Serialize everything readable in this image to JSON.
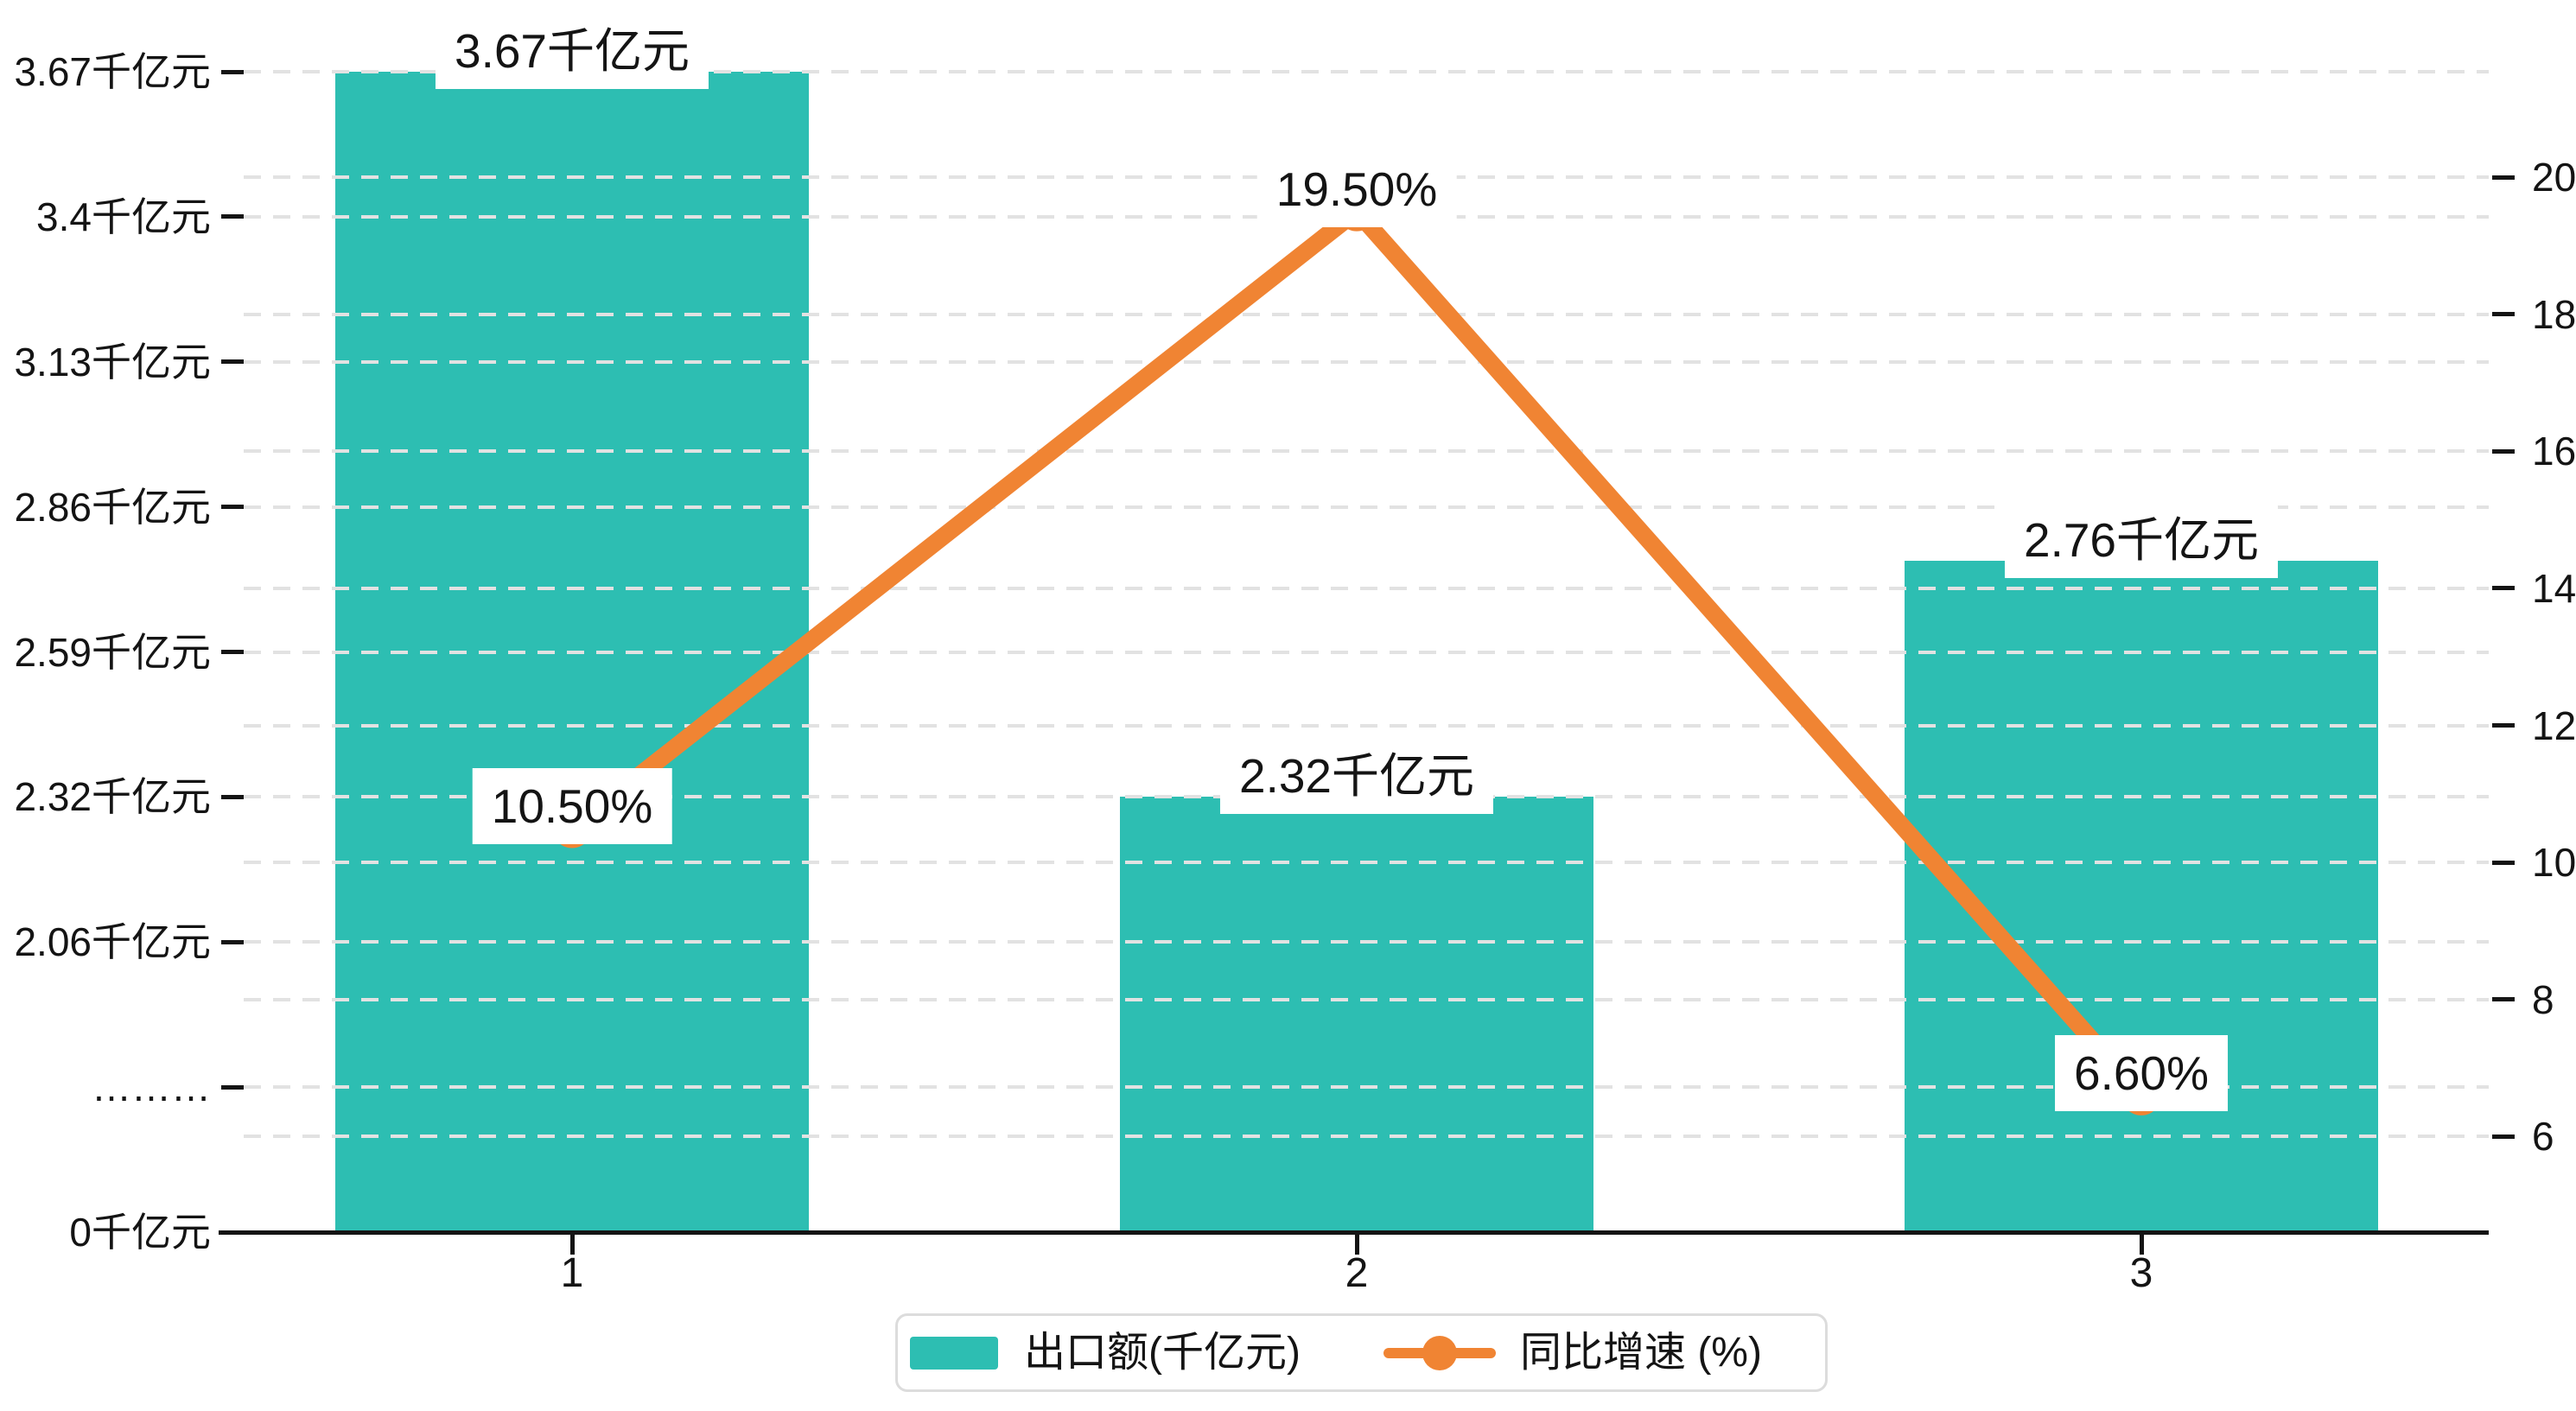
{
  "chart_data": {
    "type": "bar+line",
    "title": "",
    "categories": [
      "1",
      "2",
      "3"
    ],
    "series": [
      {
        "name": "出口额(千亿元)",
        "type": "bar",
        "axis": "left",
        "unit": "千亿元",
        "values": [
          3.67,
          2.32,
          2.76
        ],
        "data_labels": [
          "3.67千亿元",
          "2.32千亿元",
          "2.76千亿元"
        ]
      },
      {
        "name": "同比增速 (%)",
        "type": "line",
        "axis": "right",
        "unit": "%",
        "values": [
          10.5,
          19.5,
          6.6
        ],
        "data_labels": [
          "10.50%",
          "19.50%",
          "6.60%"
        ]
      }
    ],
    "left_axis": {
      "tick_labels_bottom_to_top": [
        "0千亿元",
        "………",
        "2.06千亿元",
        "2.32千亿元",
        "2.59千亿元",
        "2.86千亿元",
        "3.13千亿元",
        "3.4千亿元",
        "3.67千亿元"
      ],
      "has_axis_break": true
    },
    "right_axis": {
      "tick_labels_top_to_bottom": [
        "20",
        "18",
        "16",
        "14",
        "12",
        "10",
        "8",
        "6"
      ],
      "visible_range": [
        6,
        20
      ],
      "step": 2
    },
    "x_axis": {
      "labels": [
        "1",
        "2",
        "3"
      ]
    },
    "grid": "dashed horizontal lines at both axes' ticks",
    "legend_position": "bottom-center"
  },
  "legend": {
    "items": [
      {
        "label": "出口额(千亿元)",
        "marker": "bar-swatch"
      },
      {
        "label": "同比增速 (%)",
        "marker": "line-dot"
      }
    ]
  },
  "colors": {
    "bar": "#2dbeb2",
    "line": "#f08433",
    "grid": "#e2e2e2",
    "axis": "#141414",
    "text": "#141414",
    "legend_border": "#dcdcdc",
    "background": "#ffffff"
  }
}
